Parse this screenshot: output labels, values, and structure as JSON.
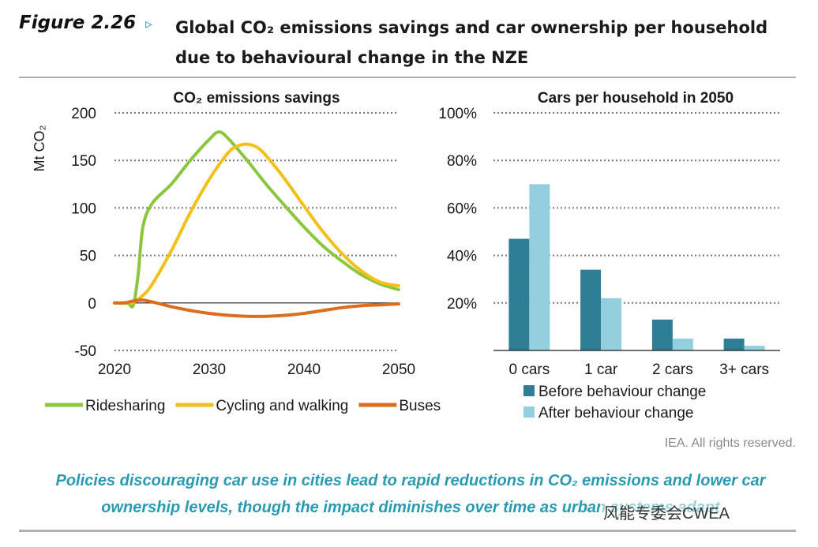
{
  "header": {
    "figure_label": "Figure 2.26",
    "arrow": "▹",
    "title": "Global CO₂ emissions savings and car ownership per household due to behavioural change in the NZE"
  },
  "footer": {
    "credit": "IEA. All rights reserved.",
    "caption": "Policies discouraging car use in cities lead to rapid reductions in CO₂ emissions and lower car ownership levels, though the impact diminishes over time as urban systems adapt",
    "watermark": "风能专委会CWEA"
  },
  "chart_data": [
    {
      "type": "line",
      "title": "CO₂ emissions savings",
      "ylabel": "Mt CO₂",
      "xlabel": "",
      "xlim": [
        2020,
        2050
      ],
      "ylim": [
        -50,
        200
      ],
      "xticks": [
        2020,
        2030,
        2040,
        2050
      ],
      "yticks": [
        -50,
        0,
        50,
        100,
        150,
        200
      ],
      "grid": "dotted horizontal",
      "legend_position": "bottom",
      "series": [
        {
          "name": "Ridesharing",
          "color": "#8cc63f",
          "x": [
            2020,
            2021,
            2021.5,
            2022,
            2022.5,
            2023,
            2024,
            2026,
            2028,
            2030,
            2031,
            2032,
            2034,
            2036,
            2038,
            2040,
            2042,
            2044,
            2046,
            2048,
            2050
          ],
          "y": [
            0,
            0,
            -1,
            -2,
            30,
            80,
            105,
            125,
            150,
            172,
            180,
            173,
            150,
            125,
            102,
            80,
            60,
            44,
            30,
            20,
            14
          ]
        },
        {
          "name": "Cycling and walking",
          "color": "#f2c018",
          "x": [
            2020,
            2021,
            2022,
            2023,
            2024,
            2026,
            2028,
            2030,
            2032,
            2033,
            2034,
            2035,
            2036,
            2038,
            2040,
            2042,
            2044,
            2046,
            2048,
            2050
          ],
          "y": [
            0,
            0,
            1,
            8,
            20,
            55,
            95,
            130,
            158,
            165,
            167,
            164,
            155,
            130,
            102,
            75,
            52,
            34,
            22,
            18
          ]
        },
        {
          "name": "Buses",
          "color": "#dd6d1e",
          "x": [
            2020,
            2021,
            2022,
            2023,
            2024,
            2026,
            2028,
            2030,
            2032,
            2034,
            2036,
            2038,
            2040,
            2042,
            2044,
            2046,
            2048,
            2050
          ],
          "y": [
            0,
            0,
            2,
            3,
            1,
            -4,
            -8,
            -11,
            -13,
            -14,
            -14,
            -13,
            -11,
            -8,
            -5,
            -3,
            -2,
            -1
          ]
        }
      ]
    },
    {
      "type": "bar",
      "title": "Cars per household in 2050",
      "categories": [
        "0 cars",
        "1 car",
        "2 cars",
        "3+ cars"
      ],
      "ylim": [
        0,
        100
      ],
      "yticks": [
        20,
        40,
        60,
        80,
        100
      ],
      "ytick_labels": [
        "20%",
        "40%",
        "60%",
        "80%",
        "100%"
      ],
      "grid": "dotted horizontal",
      "legend_position": "bottom",
      "series": [
        {
          "name": "Before behaviour change",
          "color": "#2e7f95",
          "values": [
            47,
            34,
            13,
            5
          ]
        },
        {
          "name": "After behaviour change",
          "color": "#93cfde",
          "values": [
            70,
            22,
            5,
            2
          ]
        }
      ]
    }
  ]
}
